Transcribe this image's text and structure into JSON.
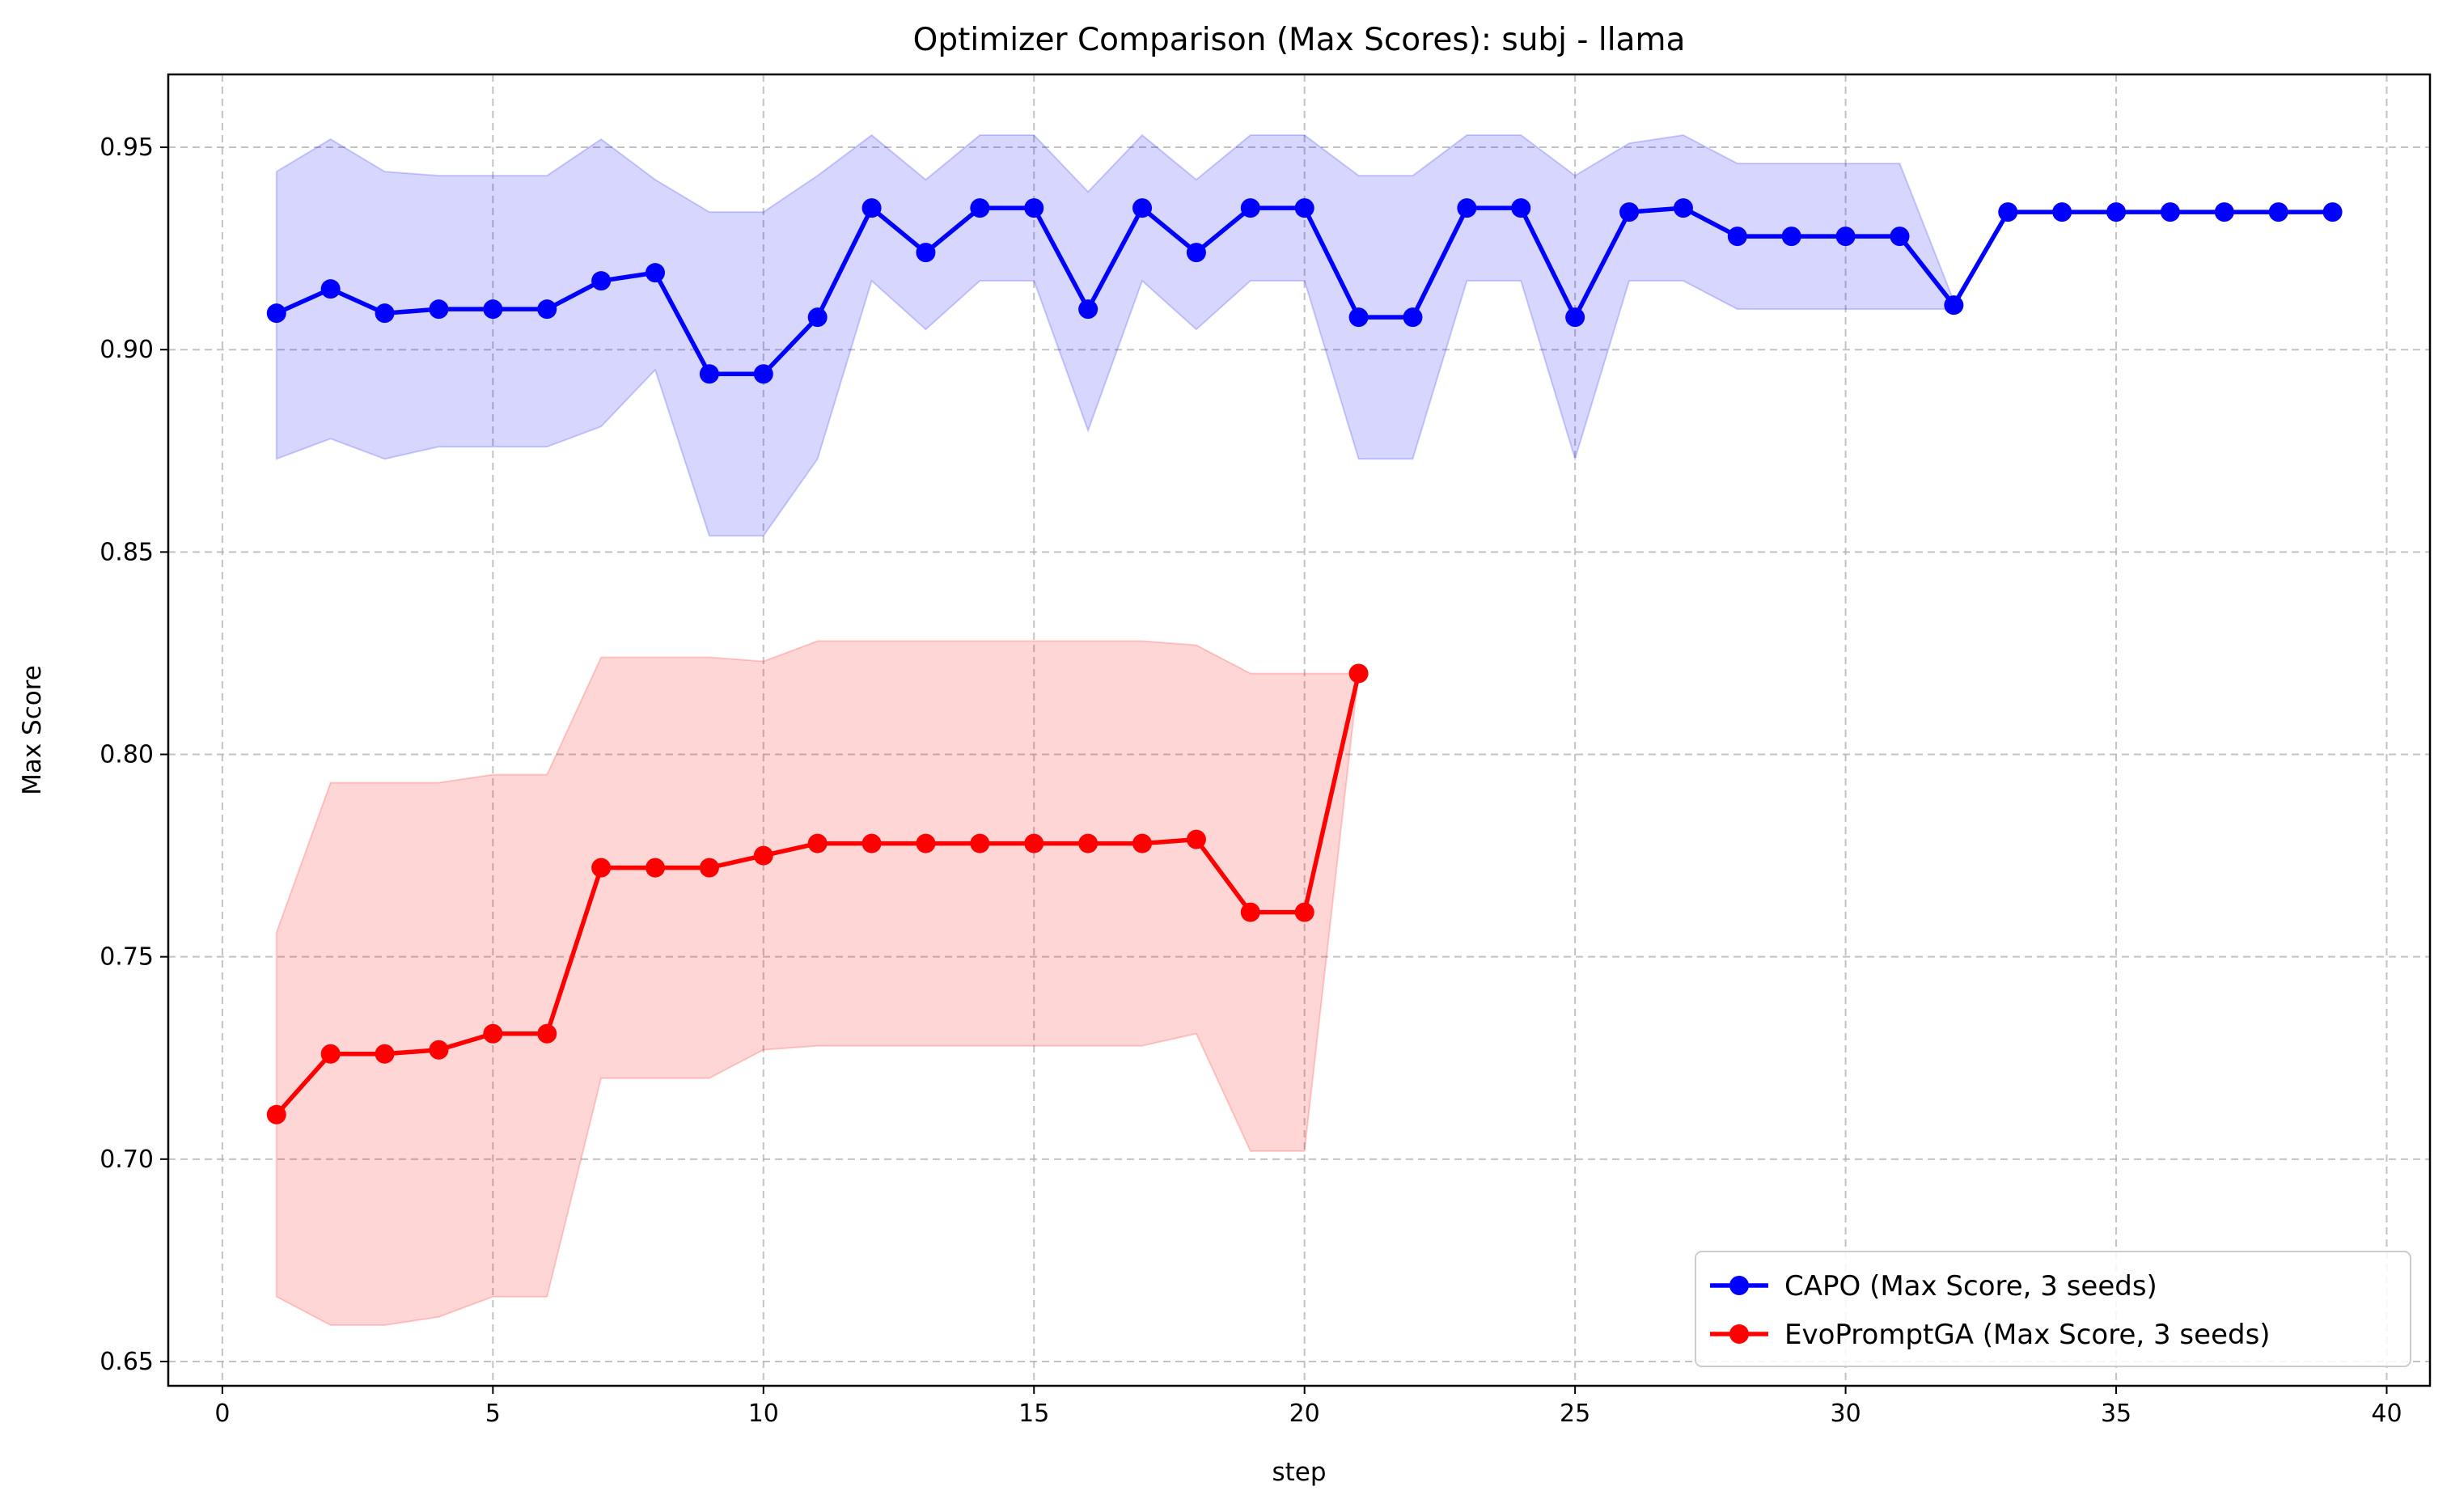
{
  "chart_data": {
    "type": "line",
    "title": "Optimizer Comparison (Max Scores): subj - llama",
    "xlabel": "step",
    "ylabel": "Max Score",
    "xlim": [
      -1.0,
      40.8
    ],
    "ylim": [
      0.644,
      0.968
    ],
    "xticks": [
      0,
      5,
      10,
      15,
      20,
      25,
      30,
      35,
      40
    ],
    "yticks": [
      0.65,
      0.7,
      0.75,
      0.8,
      0.85,
      0.9,
      0.95
    ],
    "ytick_labels": [
      "0.65",
      "0.70",
      "0.75",
      "0.80",
      "0.85",
      "0.90",
      "0.95"
    ],
    "grid": true,
    "legend_position": "lower-right",
    "series": [
      {
        "name": "CAPO (Max Score, 3 seeds)",
        "color": "#0000ff",
        "band_color": "#0000ff",
        "x": [
          1,
          2,
          3,
          4,
          5,
          6,
          7,
          8,
          9,
          10,
          11,
          12,
          13,
          14,
          15,
          16,
          17,
          18,
          19,
          20,
          21,
          22,
          23,
          24,
          25,
          26,
          27,
          28,
          29,
          30,
          31,
          32,
          33,
          34,
          35,
          36,
          37,
          38,
          39
        ],
        "values": [
          0.909,
          0.915,
          0.909,
          0.91,
          0.91,
          0.91,
          0.917,
          0.919,
          0.894,
          0.894,
          0.908,
          0.935,
          0.924,
          0.935,
          0.935,
          0.91,
          0.935,
          0.924,
          0.935,
          0.935,
          0.908,
          0.908,
          0.935,
          0.935,
          0.908,
          0.934,
          0.935,
          0.928,
          0.928,
          0.928,
          0.928,
          0.911,
          0.934,
          0.934,
          0.934,
          0.934,
          0.934,
          0.934,
          0.934
        ],
        "lower": [
          0.873,
          0.878,
          0.873,
          0.876,
          0.876,
          0.876,
          0.881,
          0.895,
          0.854,
          0.854,
          0.873,
          0.917,
          0.905,
          0.917,
          0.917,
          0.88,
          0.917,
          0.905,
          0.917,
          0.917,
          0.873,
          0.873,
          0.917,
          0.917,
          0.873,
          0.917,
          0.917,
          0.91,
          0.91,
          0.91,
          0.91,
          0.91,
          0.934,
          0.934,
          0.934,
          0.934,
          0.934,
          0.934,
          0.934
        ],
        "upper": [
          0.944,
          0.952,
          0.944,
          0.943,
          0.943,
          0.943,
          0.952,
          0.942,
          0.934,
          0.934,
          0.943,
          0.953,
          0.942,
          0.953,
          0.953,
          0.939,
          0.953,
          0.942,
          0.953,
          0.953,
          0.943,
          0.943,
          0.953,
          0.953,
          0.943,
          0.951,
          0.953,
          0.946,
          0.946,
          0.946,
          0.946,
          0.912,
          0.934,
          0.934,
          0.934,
          0.934,
          0.934,
          0.934,
          0.934
        ]
      },
      {
        "name": "EvoPromptGA (Max Score, 3 seeds)",
        "color": "#ff0000",
        "band_color": "#ff0000",
        "x": [
          1,
          2,
          3,
          4,
          5,
          6,
          7,
          8,
          9,
          10,
          11,
          12,
          13,
          14,
          15,
          16,
          17,
          18,
          19,
          20,
          21
        ],
        "values": [
          0.711,
          0.726,
          0.726,
          0.727,
          0.731,
          0.731,
          0.772,
          0.772,
          0.772,
          0.775,
          0.778,
          0.778,
          0.778,
          0.778,
          0.778,
          0.778,
          0.778,
          0.779,
          0.761,
          0.761,
          0.82
        ],
        "lower": [
          0.666,
          0.659,
          0.659,
          0.661,
          0.666,
          0.666,
          0.72,
          0.72,
          0.72,
          0.727,
          0.728,
          0.728,
          0.728,
          0.728,
          0.728,
          0.728,
          0.728,
          0.731,
          0.702,
          0.702,
          0.82
        ],
        "upper": [
          0.756,
          0.793,
          0.793,
          0.793,
          0.795,
          0.795,
          0.824,
          0.824,
          0.824,
          0.823,
          0.828,
          0.828,
          0.828,
          0.828,
          0.828,
          0.828,
          0.828,
          0.827,
          0.82,
          0.82,
          0.82
        ]
      }
    ]
  }
}
